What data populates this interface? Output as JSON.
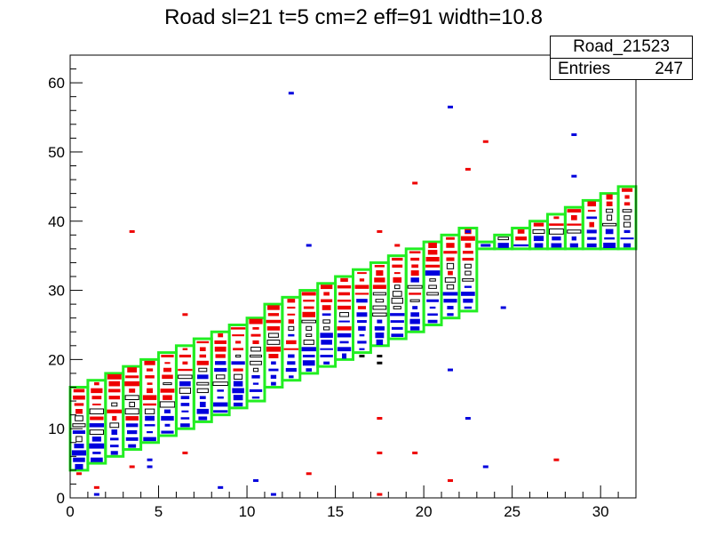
{
  "chart_data": {
    "type": "heatmap",
    "title": "Road sl=21 t=5 cm=2 eff=91 width=10.8",
    "xlabel": "",
    "ylabel": "",
    "xlim": [
      0,
      32
    ],
    "ylim": [
      0,
      64
    ],
    "x_ticks": [
      0,
      5,
      10,
      15,
      20,
      25,
      30
    ],
    "y_ticks": [
      0,
      10,
      20,
      30,
      40,
      50,
      60
    ],
    "grid": false,
    "stats_box": {
      "name": "Road_21523",
      "entries_label": "Entries",
      "entries_value": "247"
    },
    "road_band": {
      "description_color": "#22ee22",
      "segments": [
        {
          "x_from": 0,
          "x_to": 23,
          "y_low_start": 4,
          "y_low_end": 27,
          "height": 12
        },
        {
          "x_from": 23,
          "x_to": 32,
          "y_low_start": 36,
          "y_low_end": 36,
          "height_start": 1,
          "height_end": 9
        }
      ]
    },
    "colors": {
      "road": "#22ee22",
      "hit_red": "#ee0000",
      "hit_blue": "#0000dd",
      "hit_black": "#000000"
    },
    "hits": [
      {
        "x": 0,
        "y": 3,
        "c": "red"
      },
      {
        "x": 1,
        "y": 1,
        "c": "red"
      },
      {
        "x": 1,
        "y": 0,
        "c": "blue"
      },
      {
        "x": 3,
        "y": 38,
        "c": "red"
      },
      {
        "x": 3,
        "y": 4,
        "c": "red"
      },
      {
        "x": 4,
        "y": 5,
        "c": "blue"
      },
      {
        "x": 4,
        "y": 4,
        "c": "blue"
      },
      {
        "x": 6,
        "y": 26,
        "c": "red"
      },
      {
        "x": 6,
        "y": 6,
        "c": "red"
      },
      {
        "x": 8,
        "y": 1,
        "c": "blue"
      },
      {
        "x": 10,
        "y": 2,
        "c": "blue"
      },
      {
        "x": 11,
        "y": 0,
        "c": "blue"
      },
      {
        "x": 12,
        "y": 58,
        "c": "blue"
      },
      {
        "x": 13,
        "y": 36,
        "c": "blue"
      },
      {
        "x": 13,
        "y": 3,
        "c": "red"
      },
      {
        "x": 17,
        "y": 38,
        "c": "red"
      },
      {
        "x": 17,
        "y": 11,
        "c": "red"
      },
      {
        "x": 17,
        "y": 6,
        "c": "red"
      },
      {
        "x": 17,
        "y": 0,
        "c": "red"
      },
      {
        "x": 18,
        "y": 36,
        "c": "red"
      },
      {
        "x": 19,
        "y": 45,
        "c": "red"
      },
      {
        "x": 19,
        "y": 6,
        "c": "red"
      },
      {
        "x": 21,
        "y": 56,
        "c": "blue"
      },
      {
        "x": 21,
        "y": 18,
        "c": "blue"
      },
      {
        "x": 21,
        "y": 2,
        "c": "red"
      },
      {
        "x": 22,
        "y": 47,
        "c": "red"
      },
      {
        "x": 22,
        "y": 38,
        "c": "blue"
      },
      {
        "x": 22,
        "y": 11,
        "c": "blue"
      },
      {
        "x": 23,
        "y": 51,
        "c": "red"
      },
      {
        "x": 23,
        "y": 4,
        "c": "blue"
      },
      {
        "x": 24,
        "y": 27,
        "c": "blue"
      },
      {
        "x": 27,
        "y": 5,
        "c": "red"
      },
      {
        "x": 28,
        "y": 52,
        "c": "blue"
      },
      {
        "x": 28,
        "y": 46,
        "c": "blue"
      },
      {
        "x": 17,
        "y": 19,
        "c": "black"
      },
      {
        "x": 17,
        "y": 20,
        "c": "black"
      },
      {
        "x": 16,
        "y": 20,
        "c": "black"
      }
    ]
  }
}
